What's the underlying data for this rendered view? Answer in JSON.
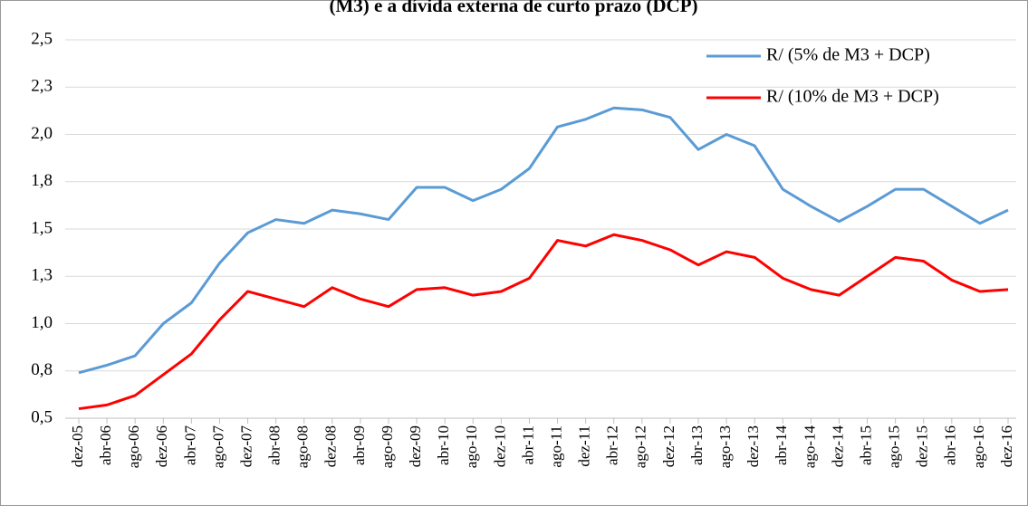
{
  "chart_data": {
    "type": "line",
    "title": "(M3) e a dívida externa de curto prazo (DCP)",
    "categories": [
      "dez-05",
      "abr-06",
      "ago-06",
      "dez-06",
      "abr-07",
      "ago-07",
      "dez-07",
      "abr-08",
      "ago-08",
      "dez-08",
      "abr-09",
      "ago-09",
      "dez-09",
      "abr-10",
      "ago-10",
      "dez-10",
      "abr-11",
      "ago-11",
      "dez-11",
      "abr-12",
      "ago-12",
      "dez-12",
      "abr-13",
      "ago-13",
      "dez-13",
      "abr-14",
      "ago-14",
      "dez-14",
      "abr-15",
      "ago-15",
      "dez-15",
      "abr-16",
      "ago-16",
      "dez-16"
    ],
    "series": [
      {
        "name": "R/ (5% de M3 + DCP)",
        "color": "#5b9bd5",
        "values": [
          0.74,
          0.78,
          0.83,
          1.0,
          1.11,
          1.32,
          1.48,
          1.55,
          1.53,
          1.6,
          1.58,
          1.55,
          1.72,
          1.72,
          1.65,
          1.71,
          1.82,
          2.04,
          2.08,
          2.14,
          2.13,
          2.09,
          1.92,
          2.0,
          1.94,
          1.71,
          1.62,
          1.54,
          1.62,
          1.71,
          1.71,
          1.62,
          1.53,
          1.6
        ]
      },
      {
        "name": "R/ (10% de M3 + DCP)",
        "color": "#ff0000",
        "values": [
          0.55,
          0.57,
          0.62,
          0.73,
          0.84,
          1.02,
          1.17,
          1.13,
          1.09,
          1.19,
          1.13,
          1.09,
          1.18,
          1.19,
          1.15,
          1.17,
          1.24,
          1.44,
          1.41,
          1.47,
          1.44,
          1.39,
          1.31,
          1.38,
          1.35,
          1.24,
          1.18,
          1.15,
          1.25,
          1.35,
          1.33,
          1.23,
          1.17,
          1.18
        ]
      }
    ],
    "ylim": [
      0.5,
      2.5
    ],
    "yticks": [
      {
        "value": 0.5,
        "label": "0,5"
      },
      {
        "value": 0.75,
        "label": "0,8"
      },
      {
        "value": 1.0,
        "label": "1,0"
      },
      {
        "value": 1.25,
        "label": "1,3"
      },
      {
        "value": 1.5,
        "label": "1,5"
      },
      {
        "value": 1.75,
        "label": "1,8"
      },
      {
        "value": 2.0,
        "label": "2,0"
      },
      {
        "value": 2.25,
        "label": "2,3"
      },
      {
        "value": 2.5,
        "label": "2,5"
      }
    ],
    "grid": true,
    "legend": "upper right"
  }
}
